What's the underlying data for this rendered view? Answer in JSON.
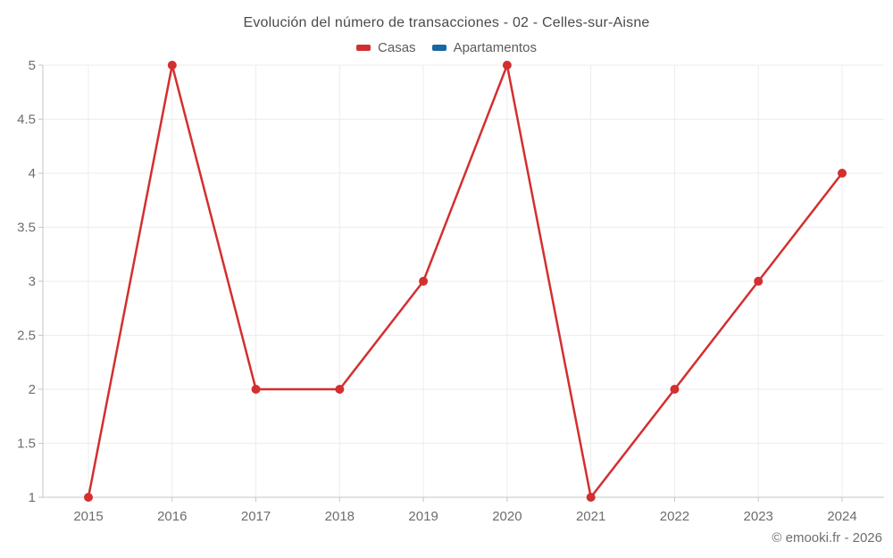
{
  "title": "Evolución del número de transacciones - 02 - Celles-sur-Aisne",
  "watermark": "© emooki.fr - 2026",
  "legend": [
    {
      "label": "Casas",
      "color": "#d32f2f"
    },
    {
      "label": "Apartamentos",
      "color": "#1669a0"
    }
  ],
  "chart_data": {
    "type": "line",
    "title": "Evolución del número de transacciones - 02 - Celles-sur-Aisne",
    "x": [
      2015,
      2016,
      2017,
      2018,
      2019,
      2020,
      2021,
      2022,
      2023,
      2024
    ],
    "series": [
      {
        "name": "Casas",
        "color": "#d32f2f",
        "values": [
          1,
          5,
          2,
          2,
          3,
          5,
          1,
          2,
          3,
          4
        ]
      },
      {
        "name": "Apartamentos",
        "color": "#1669a0",
        "values": []
      }
    ],
    "xlabel": "",
    "ylabel": "",
    "ylim": [
      1,
      5
    ],
    "yticks": [
      1,
      1.5,
      2,
      2.5,
      3,
      3.5,
      4,
      4.5,
      5
    ],
    "grid": true,
    "legend_position": "top"
  },
  "colors": {
    "grid": "#ececec",
    "axis": "#c6c6c6",
    "tick_label": "#6d6d6d",
    "title_text": "#4a4a4a",
    "legend_text": "#5c5c5c",
    "background": "#ffffff"
  }
}
